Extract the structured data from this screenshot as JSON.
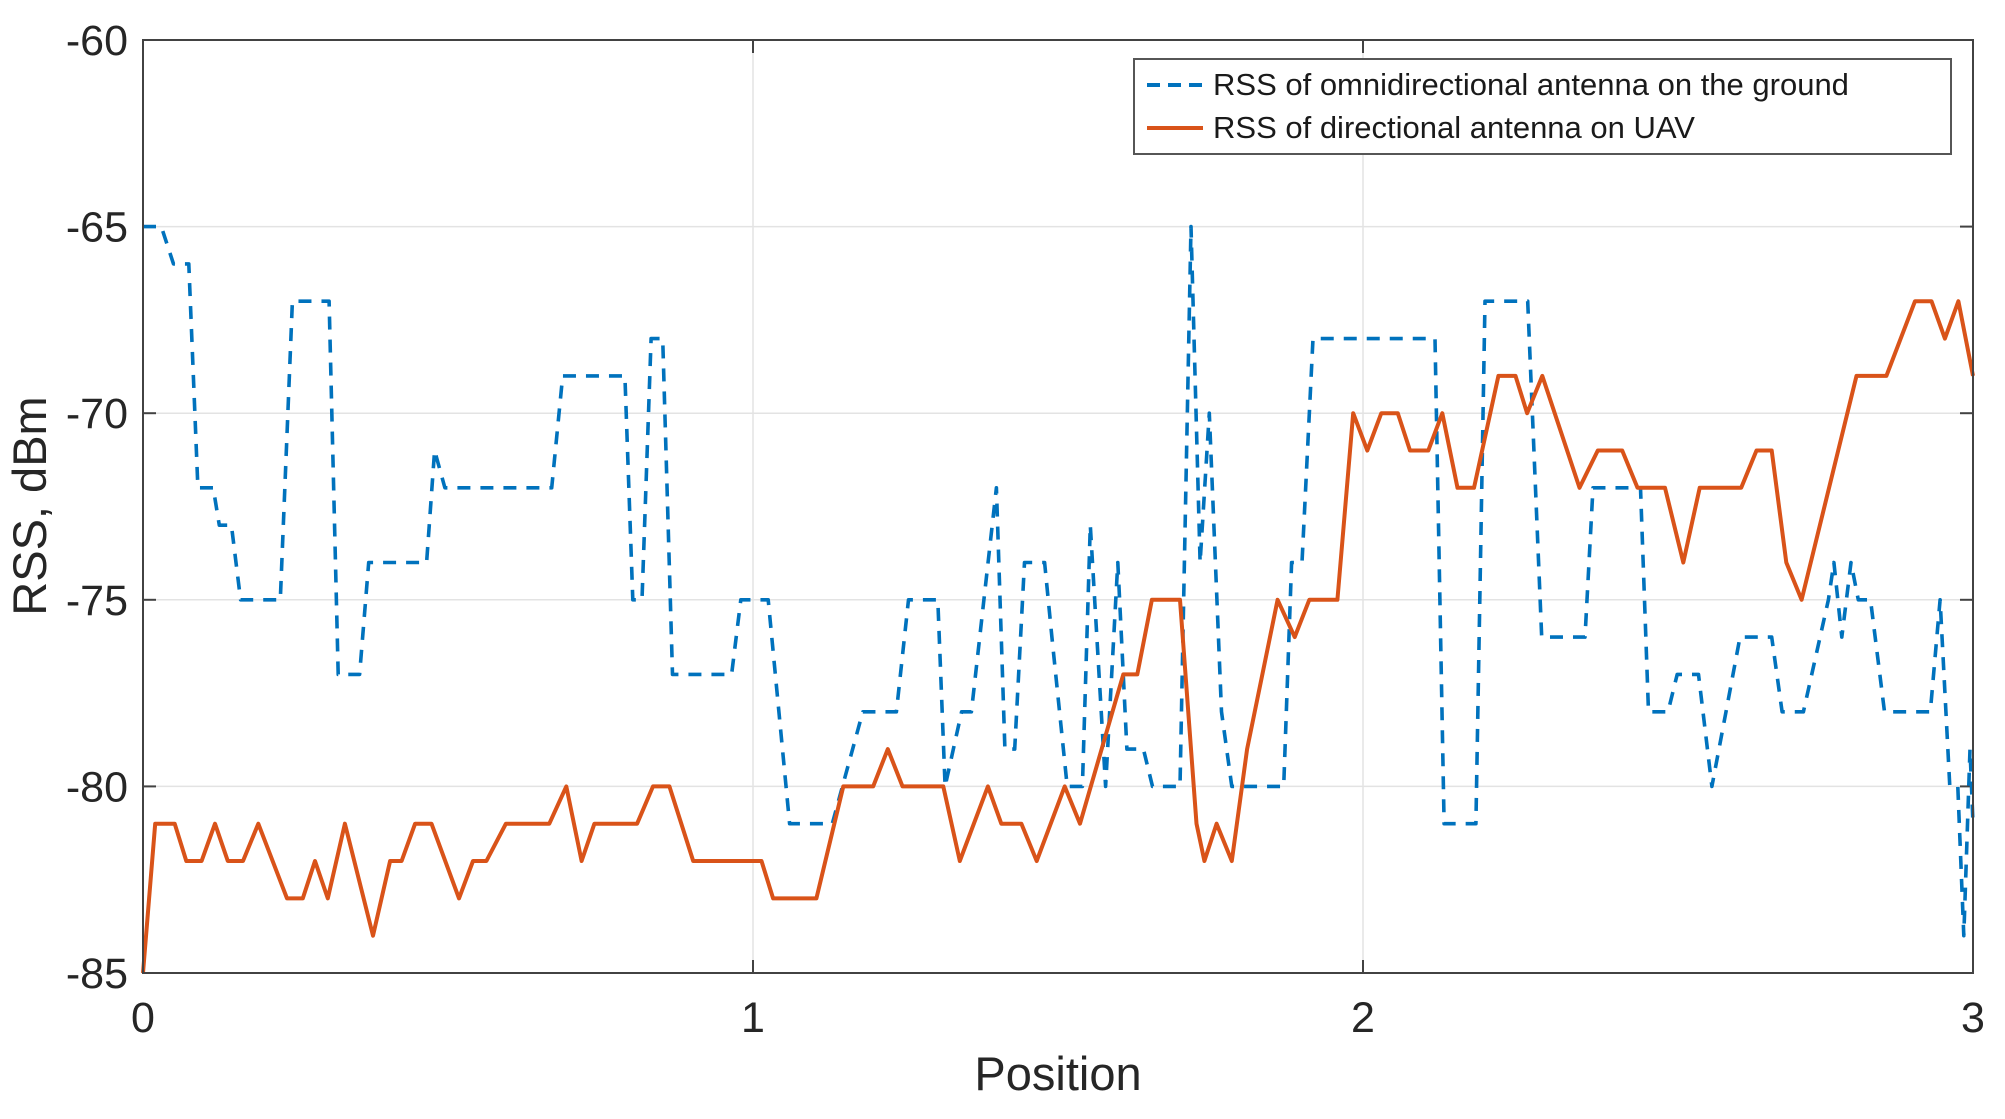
{
  "chart_data": {
    "type": "line",
    "title": "",
    "xlabel": "Position",
    "ylabel": "RSS, dBm",
    "xlim": [
      0,
      3
    ],
    "ylim": [
      -85,
      -60
    ],
    "xticks": [
      0,
      1,
      2,
      3
    ],
    "yticks": [
      -85,
      -80,
      -75,
      -70,
      -65,
      -60
    ],
    "grid": true,
    "legend_position": "top-right",
    "colors": {
      "omni_blue": "#0072BD",
      "uav_orange": "#D95319",
      "grid_line": "#E3E3E3",
      "axis_box": "#424242",
      "text": "#262626"
    },
    "series": [
      {
        "name": "RSS of omnidirectional antenna on the ground",
        "style": "dashed",
        "color": "#0072BD",
        "points": [
          [
            0,
            -65
          ],
          [
            0.03,
            -65
          ],
          [
            0.05,
            -66
          ],
          [
            0.075,
            -66
          ],
          [
            0.09,
            -72
          ],
          [
            0.115,
            -72
          ],
          [
            0.125,
            -73
          ],
          [
            0.145,
            -73
          ],
          [
            0.16,
            -75
          ],
          [
            0.225,
            -75
          ],
          [
            0.245,
            -67
          ],
          [
            0.305,
            -67
          ],
          [
            0.32,
            -77
          ],
          [
            0.355,
            -77
          ],
          [
            0.37,
            -74
          ],
          [
            0.465,
            -74
          ],
          [
            0.478,
            -71
          ],
          [
            0.495,
            -72
          ],
          [
            0.67,
            -72
          ],
          [
            0.688,
            -69
          ],
          [
            0.79,
            -69
          ],
          [
            0.803,
            -75
          ],
          [
            0.818,
            -75
          ],
          [
            0.833,
            -68
          ],
          [
            0.852,
            -68
          ],
          [
            0.868,
            -77
          ],
          [
            0.965,
            -77
          ],
          [
            0.98,
            -75
          ],
          [
            1.025,
            -75
          ],
          [
            1.06,
            -81
          ],
          [
            1.13,
            -81
          ],
          [
            1.18,
            -78
          ],
          [
            1.235,
            -78
          ],
          [
            1.255,
            -75
          ],
          [
            1.303,
            -75
          ],
          [
            1.315,
            -80
          ],
          [
            1.342,
            -78
          ],
          [
            1.358,
            -78
          ],
          [
            1.399,
            -72
          ],
          [
            1.413,
            -79
          ],
          [
            1.429,
            -79
          ],
          [
            1.445,
            -74
          ],
          [
            1.478,
            -74
          ],
          [
            1.49,
            -76
          ],
          [
            1.515,
            -80
          ],
          [
            1.54,
            -80
          ],
          [
            1.553,
            -73
          ],
          [
            1.578,
            -80
          ],
          [
            1.598,
            -74
          ],
          [
            1.613,
            -79
          ],
          [
            1.64,
            -79
          ],
          [
            1.655,
            -80
          ],
          [
            1.7,
            -80
          ],
          [
            1.718,
            -65
          ],
          [
            1.733,
            -74
          ],
          [
            1.748,
            -70
          ],
          [
            1.768,
            -78
          ],
          [
            1.785,
            -80
          ],
          [
            1.87,
            -80
          ],
          [
            1.883,
            -74
          ],
          [
            1.9,
            -74
          ],
          [
            1.918,
            -68
          ],
          [
            2.118,
            -68
          ],
          [
            2.133,
            -81
          ],
          [
            2.185,
            -81
          ],
          [
            2.2,
            -67
          ],
          [
            2.27,
            -67
          ],
          [
            2.293,
            -76
          ],
          [
            2.364,
            -76
          ],
          [
            2.377,
            -72
          ],
          [
            2.455,
            -72
          ],
          [
            2.468,
            -78
          ],
          [
            2.5,
            -78
          ],
          [
            2.515,
            -77
          ],
          [
            2.55,
            -77
          ],
          [
            2.572,
            -80
          ],
          [
            2.595,
            -78
          ],
          [
            2.618,
            -76
          ],
          [
            2.67,
            -76
          ],
          [
            2.687,
            -78
          ],
          [
            2.722,
            -78
          ],
          [
            2.763,
            -75
          ],
          [
            2.772,
            -74
          ],
          [
            2.785,
            -76
          ],
          [
            2.8,
            -74
          ],
          [
            2.812,
            -75
          ],
          [
            2.832,
            -75
          ],
          [
            2.855,
            -78
          ],
          [
            2.93,
            -78
          ],
          [
            2.946,
            -75
          ],
          [
            2.962,
            -80
          ],
          [
            2.975,
            -80
          ],
          [
            2.985,
            -84
          ],
          [
            2.995,
            -79
          ],
          [
            3,
            -81
          ]
        ]
      },
      {
        "name": "RSS of directional antenna on UAV",
        "style": "solid",
        "color": "#D95319",
        "points": [
          [
            0,
            -85
          ],
          [
            0.02,
            -81
          ],
          [
            0.052,
            -81
          ],
          [
            0.071,
            -82
          ],
          [
            0.096,
            -82
          ],
          [
            0.118,
            -81
          ],
          [
            0.139,
            -82
          ],
          [
            0.164,
            -82
          ],
          [
            0.189,
            -81
          ],
          [
            0.236,
            -83
          ],
          [
            0.262,
            -83
          ],
          [
            0.282,
            -82
          ],
          [
            0.303,
            -83
          ],
          [
            0.331,
            -81
          ],
          [
            0.377,
            -84
          ],
          [
            0.405,
            -82
          ],
          [
            0.424,
            -82
          ],
          [
            0.446,
            -81
          ],
          [
            0.473,
            -81
          ],
          [
            0.518,
            -83
          ],
          [
            0.541,
            -82
          ],
          [
            0.563,
            -82
          ],
          [
            0.595,
            -81
          ],
          [
            0.666,
            -81
          ],
          [
            0.694,
            -80
          ],
          [
            0.719,
            -82
          ],
          [
            0.74,
            -81
          ],
          [
            0.81,
            -81
          ],
          [
            0.836,
            -80
          ],
          [
            0.863,
            -80
          ],
          [
            0.902,
            -82
          ],
          [
            1.014,
            -82
          ],
          [
            1.033,
            -83
          ],
          [
            1.104,
            -83
          ],
          [
            1.148,
            -80
          ],
          [
            1.197,
            -80
          ],
          [
            1.221,
            -79
          ],
          [
            1.245,
            -80
          ],
          [
            1.312,
            -80
          ],
          [
            1.339,
            -82
          ],
          [
            1.385,
            -80
          ],
          [
            1.407,
            -81
          ],
          [
            1.44,
            -81
          ],
          [
            1.465,
            -82
          ],
          [
            1.511,
            -80
          ],
          [
            1.536,
            -81
          ],
          [
            1.607,
            -77
          ],
          [
            1.63,
            -77
          ],
          [
            1.654,
            -75
          ],
          [
            1.7,
            -75
          ],
          [
            1.727,
            -81
          ],
          [
            1.74,
            -82
          ],
          [
            1.76,
            -81
          ],
          [
            1.785,
            -82
          ],
          [
            1.81,
            -79
          ],
          [
            1.86,
            -75
          ],
          [
            1.888,
            -76
          ],
          [
            1.912,
            -75
          ],
          [
            1.958,
            -75
          ],
          [
            1.984,
            -70
          ],
          [
            2.007,
            -71
          ],
          [
            2.03,
            -70
          ],
          [
            2.057,
            -70
          ],
          [
            2.077,
            -71
          ],
          [
            2.107,
            -71
          ],
          [
            2.13,
            -70
          ],
          [
            2.155,
            -72
          ],
          [
            2.182,
            -72
          ],
          [
            2.222,
            -69
          ],
          [
            2.25,
            -69
          ],
          [
            2.269,
            -70
          ],
          [
            2.294,
            -69
          ],
          [
            2.355,
            -72
          ],
          [
            2.385,
            -71
          ],
          [
            2.425,
            -71
          ],
          [
            2.45,
            -72
          ],
          [
            2.495,
            -72
          ],
          [
            2.525,
            -74
          ],
          [
            2.552,
            -72
          ],
          [
            2.62,
            -72
          ],
          [
            2.645,
            -71
          ],
          [
            2.67,
            -71
          ],
          [
            2.694,
            -74
          ],
          [
            2.719,
            -75
          ],
          [
            2.809,
            -69
          ],
          [
            2.858,
            -69
          ],
          [
            2.905,
            -67
          ],
          [
            2.932,
            -67
          ],
          [
            2.954,
            -68
          ],
          [
            2.976,
            -67
          ],
          [
            3,
            -69
          ]
        ]
      }
    ]
  },
  "layout_meta": {
    "tick_label_format": "plain"
  }
}
